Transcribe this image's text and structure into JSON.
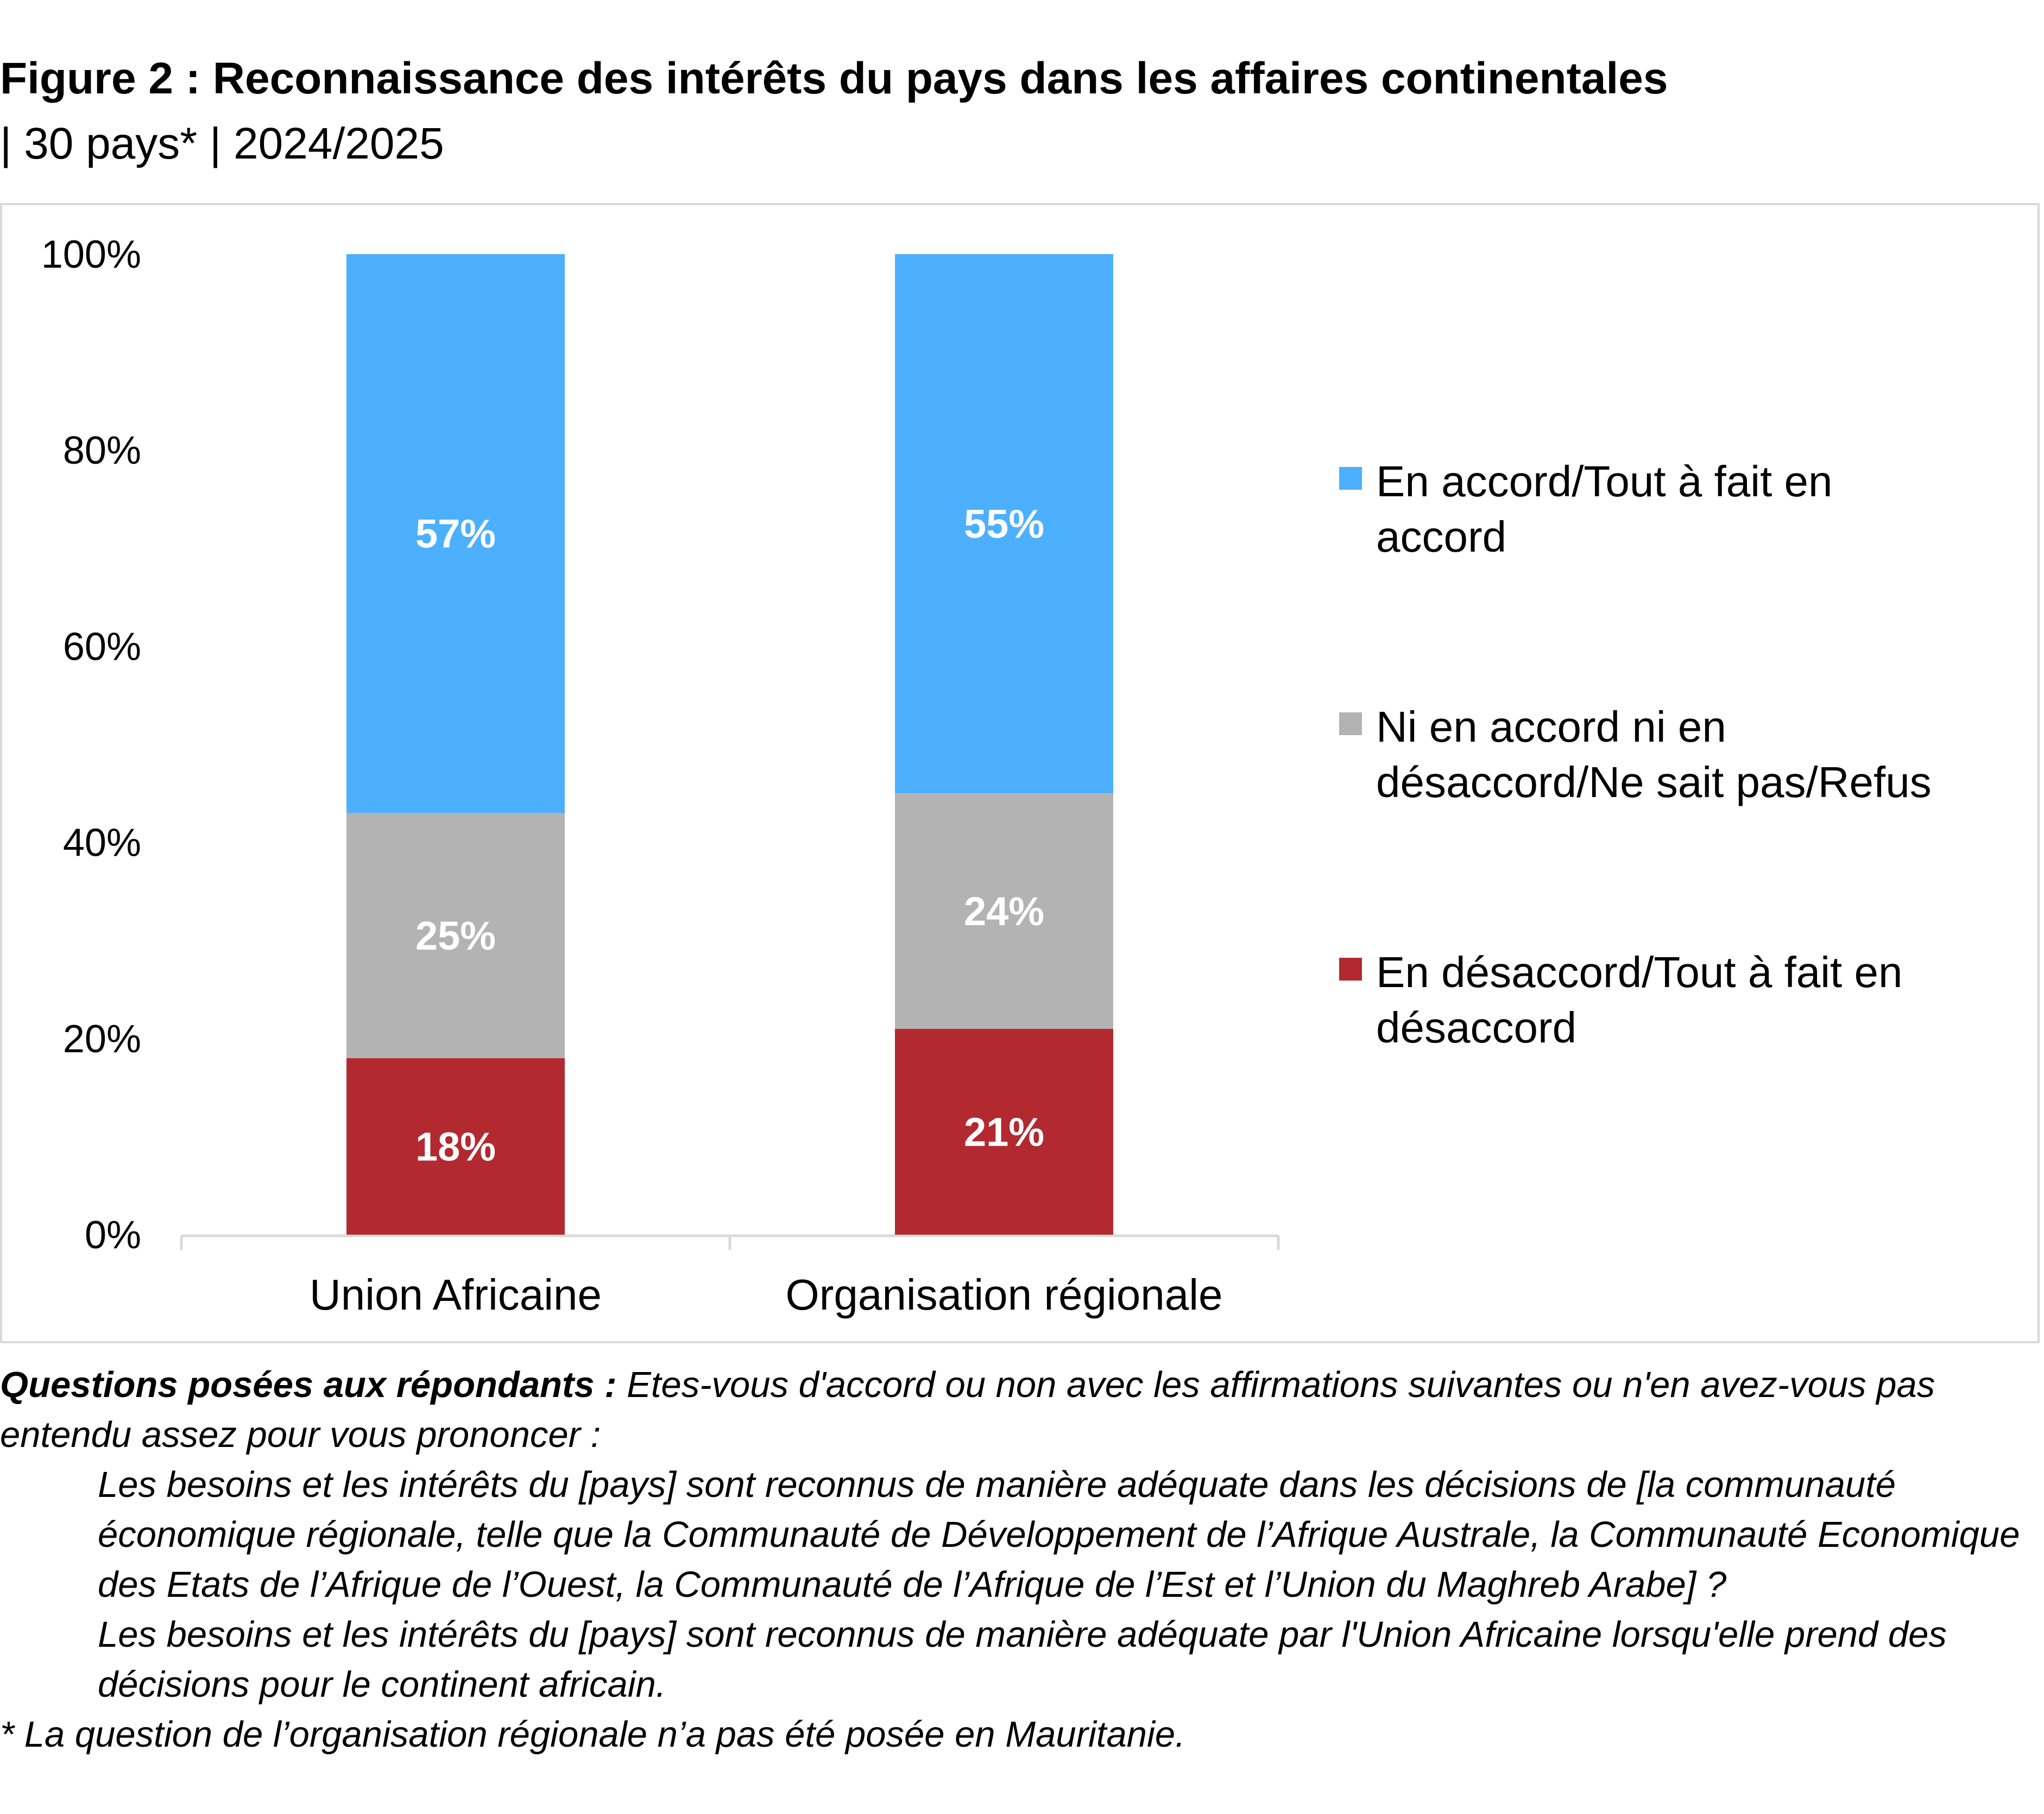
{
  "title": "Figure 2 : Reconnaissance des intérêts du pays dans les affaires continentales",
  "subtitle": "| 30 pays* | 2024/2025",
  "chart_data": {
    "type": "bar",
    "stacked": true,
    "categories": [
      "Union Africaine",
      "Organisation régionale"
    ],
    "series": [
      {
        "name": "En désaccord/Tout à fait en désaccord",
        "legend_lines": [
          "En désaccord/Tout à fait en",
          "désaccord"
        ],
        "values": [
          18,
          21
        ],
        "labels": [
          "18%",
          "21%"
        ],
        "color": "#b22a30"
      },
      {
        "name": "Ni en accord ni en désaccord/Ne sait pas/Refus",
        "legend_lines": [
          "Ni en accord ni en",
          "désaccord/Ne sait pas/Refus"
        ],
        "values": [
          25,
          24
        ],
        "labels": [
          "25%",
          "24%"
        ],
        "color": "#b3b3b3"
      },
      {
        "name": "En accord/Tout à fait en accord",
        "legend_lines": [
          "En accord/Tout à fait en",
          "accord"
        ],
        "values": [
          57,
          55
        ],
        "labels": [
          "57%",
          "55%"
        ],
        "color": "#4cb0ff"
      }
    ],
    "y_ticks": [
      "0%",
      "20%",
      "40%",
      "60%",
      "80%",
      "100%"
    ],
    "ylim": [
      0,
      100
    ],
    "grid": false,
    "legend_position": "right"
  },
  "notes": {
    "lead": "Questions posées aux répondants :",
    "intro": " Etes-vous d'accord ou non avec les affirmations suivantes ou n'en avez-vous pas entendu assez pour vous prononcer :",
    "q1": "Les besoins et les intérêts du [pays] sont reconnus de manière adéquate dans les décisions de [la communauté économique régionale, telle que la Communauté de Développement de l’Afrique Australe, la Communauté Economique des Etats de l’Afrique de l’Ouest, la Communauté de l’Afrique de l’Est et l’Union du Maghreb Arabe] ?",
    "q2": "Les besoins et les intérêts du [pays] sont reconnus de manière adéquate par l'Union Africaine lorsqu'elle prend des décisions pour le continent africain.",
    "footnote": "* La question de l’organisation régionale n’a pas été posée en Mauritanie."
  }
}
